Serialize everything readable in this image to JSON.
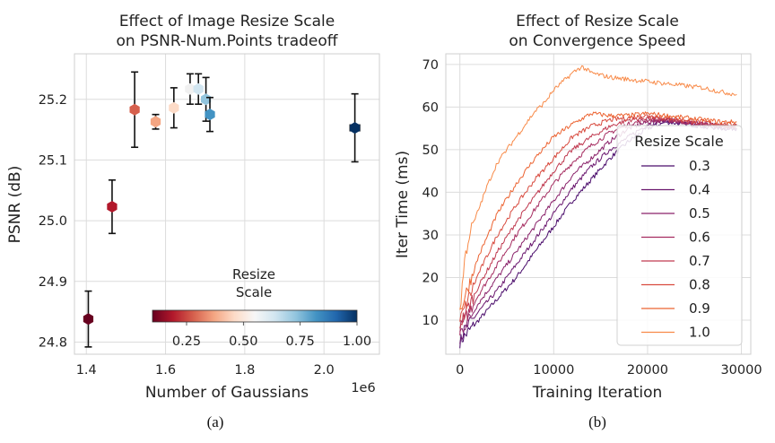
{
  "chart_data": [
    {
      "type": "scatter",
      "panel_label": "(a)",
      "title_lines": [
        "Effect of Image Resize Scale",
        "on PSNR-Num.Points tradeoff"
      ],
      "xlabel": "Number of Gaussians",
      "x_offset_text": "1e6",
      "ylabel": "PSNR (dB)",
      "xlim": [
        1.37,
        2.14
      ],
      "ylim": [
        24.78,
        25.275
      ],
      "xticks": [
        1.4,
        1.6,
        1.8,
        2.0
      ],
      "xtick_labels": [
        "1.4",
        "1.6",
        "1.8",
        "2.0"
      ],
      "yticks": [
        24.8,
        24.9,
        25.0,
        25.1,
        25.2
      ],
      "ytick_labels": [
        "24.8",
        "24.9",
        "25.0",
        "25.1",
        "25.2"
      ],
      "grid": true,
      "points": [
        {
          "scale": 0.1,
          "x": 1.405,
          "y": 24.838,
          "yerr": 0.046,
          "xerr": 0.004,
          "color": "#67001f"
        },
        {
          "scale": 0.2,
          "x": 1.465,
          "y": 25.023,
          "yerr": 0.044,
          "xerr": 0.004,
          "color": "#b2182b"
        },
        {
          "scale": 0.3,
          "x": 1.522,
          "y": 25.183,
          "yerr": 0.062,
          "xerr": 0.004,
          "color": "#d6604d"
        },
        {
          "scale": 0.4,
          "x": 1.575,
          "y": 25.163,
          "yerr": 0.012,
          "xerr": 0.004,
          "color": "#f4a582"
        },
        {
          "scale": 0.5,
          "x": 1.621,
          "y": 25.186,
          "yerr": 0.033,
          "xerr": 0.004,
          "color": "#fddbc7"
        },
        {
          "scale": 0.6,
          "x": 1.662,
          "y": 25.217,
          "yerr": 0.025,
          "xerr": 0.004,
          "color": "#f0f0f0"
        },
        {
          "scale": 0.7,
          "x": 1.683,
          "y": 25.217,
          "yerr": 0.025,
          "xerr": 0.004,
          "color": "#d1e5f0"
        },
        {
          "scale": 0.8,
          "x": 1.702,
          "y": 25.2,
          "yerr": 0.036,
          "xerr": 0.004,
          "color": "#92c5de"
        },
        {
          "scale": 0.9,
          "x": 1.712,
          "y": 25.175,
          "yerr": 0.028,
          "xerr": 0.004,
          "color": "#4393c3"
        },
        {
          "scale": 1.0,
          "x": 2.078,
          "y": 25.153,
          "yerr": 0.056,
          "xerr": 0.012,
          "color": "#053061"
        }
      ],
      "colorbar": {
        "label_lines": [
          "Resize",
          "Scale"
        ],
        "cmap": "RdBu",
        "range": [
          0.1,
          1.0
        ],
        "ticks": [
          0.25,
          0.5,
          0.75,
          1.0
        ],
        "tick_labels": [
          "0.25",
          "0.50",
          "0.75",
          "1.00"
        ],
        "stops": [
          "#67001f",
          "#b2182b",
          "#d6604d",
          "#f4a582",
          "#fddbc7",
          "#f7f7f7",
          "#d1e5f0",
          "#92c5de",
          "#4393c3",
          "#2166ac",
          "#053061"
        ]
      }
    },
    {
      "type": "line",
      "panel_label": "(b)",
      "title_lines": [
        "Effect of Resize Scale",
        "on Convergence Speed"
      ],
      "xlabel": "Training Iteration",
      "ylabel": "Iter Time (ms)",
      "xlim": [
        -1500,
        31000
      ],
      "ylim": [
        2,
        72.5
      ],
      "xticks": [
        0,
        10000,
        20000,
        30000
      ],
      "xtick_labels": [
        "0",
        "10000",
        "20000",
        "30000"
      ],
      "yticks": [
        10,
        20,
        30,
        40,
        50,
        60,
        70
      ],
      "ytick_labels": [
        "10",
        "20",
        "30",
        "40",
        "50",
        "60",
        "70"
      ],
      "grid": true,
      "legend": {
        "title": "Resize Scale",
        "loc": "center-right"
      },
      "series": [
        {
          "name": "0.3",
          "color": "#4a0c6b",
          "x": [
            0,
            2000,
            4000,
            6000,
            8000,
            10000,
            12000,
            14000,
            16000,
            18000,
            20000,
            22000,
            24000,
            26000,
            28000,
            29500
          ],
          "y": [
            5,
            10,
            15,
            20,
            26,
            32,
            38,
            43,
            48,
            52,
            55,
            56.5,
            56,
            55.5,
            55,
            55
          ]
        },
        {
          "name": "0.4",
          "color": "#6a176e",
          "x": [
            0,
            2000,
            4000,
            6000,
            8000,
            10000,
            12000,
            14000,
            16000,
            18000,
            20000,
            22000,
            24000,
            26000,
            28000,
            29500
          ],
          "y": [
            6,
            12,
            17,
            23,
            29,
            35,
            41,
            46,
            50,
            53,
            56,
            57,
            56,
            55.5,
            55,
            55
          ]
        },
        {
          "name": "0.5",
          "color": "#8a226a",
          "x": [
            0,
            2000,
            4000,
            6000,
            8000,
            10000,
            12000,
            14000,
            16000,
            18000,
            20000,
            22000,
            24000,
            26000,
            28000,
            29500
          ],
          "y": [
            7,
            14,
            20,
            26,
            32,
            38,
            44,
            48,
            52,
            55,
            56.5,
            57,
            56.5,
            56,
            55.5,
            55.5
          ]
        },
        {
          "name": "0.6",
          "color": "#a52c60",
          "x": [
            0,
            2000,
            4000,
            6000,
            8000,
            10000,
            12000,
            14000,
            16000,
            18000,
            20000,
            22000,
            24000,
            26000,
            28000,
            29500
          ],
          "y": [
            8,
            16,
            23,
            30,
            36,
            42,
            47,
            51,
            54,
            56,
            57,
            57,
            56.5,
            56,
            55.5,
            55.5
          ]
        },
        {
          "name": "0.7",
          "color": "#c03a50",
          "x": [
            0,
            2000,
            4000,
            6000,
            8000,
            10000,
            12000,
            14000,
            16000,
            18000,
            20000,
            22000,
            24000,
            26000,
            28000,
            29500
          ],
          "y": [
            9,
            18,
            26,
            33,
            39,
            45,
            50,
            53,
            55.5,
            57,
            57.5,
            57,
            56.5,
            56,
            55.5,
            55.5
          ]
        },
        {
          "name": "0.8",
          "color": "#d84b3f",
          "x": [
            0,
            2000,
            4000,
            6000,
            8000,
            10000,
            12000,
            14000,
            16000,
            18000,
            20000,
            22000,
            24000,
            26000,
            28000,
            29500
          ],
          "y": [
            10,
            21,
            30,
            37,
            43,
            48,
            53,
            55.5,
            57,
            57.5,
            58,
            57.5,
            57,
            56.5,
            56,
            56
          ]
        },
        {
          "name": "0.9",
          "color": "#ec6331",
          "x": [
            0,
            2000,
            4000,
            6000,
            8000,
            10000,
            12000,
            14000,
            16000,
            18000,
            20000,
            22000,
            24000,
            26000,
            28000,
            29500
          ],
          "y": [
            12,
            25,
            35,
            42,
            48,
            53,
            56,
            58.5,
            58,
            58,
            58.5,
            58,
            57.5,
            57,
            56.5,
            56.5
          ]
        },
        {
          "name": "1.0",
          "color": "#f88a48",
          "x": [
            0,
            500,
            1000,
            2000,
            3000,
            4000,
            5000,
            6000,
            7000,
            8000,
            9000,
            10000,
            11000,
            12000,
            13000,
            14000,
            16000,
            18000,
            20000,
            22000,
            24000,
            26000,
            28000,
            29500
          ],
          "y": [
            12,
            24,
            30,
            36,
            42,
            47,
            50,
            53,
            56,
            59,
            61,
            64,
            66,
            68,
            69.5,
            68,
            67,
            66.5,
            66,
            65.5,
            65,
            64.5,
            63.5,
            63
          ]
        }
      ]
    }
  ]
}
